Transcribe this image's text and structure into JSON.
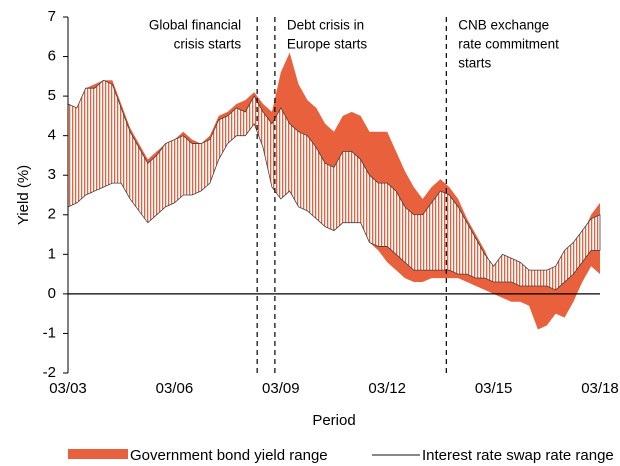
{
  "chart_data": {
    "type": "range_area",
    "y_label": "Yield (%)",
    "x_label": "Period",
    "x": [
      "03/03",
      "06/03",
      "09/03",
      "12/03",
      "03/04",
      "06/04",
      "09/04",
      "12/04",
      "03/05",
      "06/05",
      "09/05",
      "12/05",
      "03/06",
      "06/06",
      "09/06",
      "12/06",
      "03/07",
      "06/07",
      "09/07",
      "12/07",
      "03/08",
      "06/08",
      "09/08",
      "12/08",
      "03/09",
      "06/09",
      "09/09",
      "12/09",
      "03/10",
      "06/10",
      "09/10",
      "12/10",
      "03/11",
      "06/11",
      "09/11",
      "12/11",
      "03/12",
      "06/12",
      "09/12",
      "12/12",
      "03/13",
      "06/13",
      "09/13",
      "12/13",
      "03/14",
      "06/14",
      "09/14",
      "12/14",
      "03/15",
      "06/15",
      "09/15",
      "12/15",
      "03/16",
      "06/16",
      "09/16",
      "12/16",
      "03/17",
      "06/17",
      "09/17",
      "12/17",
      "03/18"
    ],
    "series": [
      {
        "name": "Government bond yield range",
        "color": "#e8603c",
        "high": [
          4.8,
          4.7,
          5.2,
          5.3,
          5.4,
          5.4,
          4.8,
          4.2,
          3.8,
          3.4,
          3.6,
          3.8,
          3.9,
          4.1,
          3.9,
          3.8,
          4.0,
          4.5,
          4.6,
          4.8,
          4.9,
          5.1,
          4.8,
          4.6,
          5.6,
          6.1,
          5.3,
          4.9,
          4.7,
          4.3,
          4.1,
          4.5,
          4.6,
          4.5,
          4.1,
          4.1,
          4.1,
          3.6,
          3.1,
          2.7,
          2.4,
          2.7,
          2.9,
          2.7,
          2.4,
          1.9,
          1.5,
          1.1,
          0.6,
          1.0,
          0.9,
          0.7,
          0.5,
          0.5,
          0.4,
          0.6,
          1.1,
          1.3,
          1.5,
          2.0,
          2.3
        ],
        "low": [
          2.2,
          2.3,
          2.6,
          2.7,
          2.8,
          2.9,
          2.8,
          2.5,
          2.2,
          1.9,
          2.0,
          2.2,
          2.3,
          2.6,
          2.6,
          2.6,
          2.8,
          3.5,
          3.8,
          4.0,
          4.1,
          4.5,
          4.0,
          3.5,
          2.8,
          2.7,
          2.5,
          2.2,
          2.0,
          1.8,
          1.6,
          1.9,
          1.9,
          1.8,
          1.3,
          1.1,
          0.8,
          0.6,
          0.4,
          0.3,
          0.3,
          0.4,
          0.4,
          0.4,
          0.4,
          0.3,
          0.2,
          0.1,
          0.0,
          -0.1,
          -0.2,
          -0.2,
          -0.3,
          -0.9,
          -0.8,
          -0.5,
          -0.6,
          -0.2,
          0.3,
          0.7,
          0.5
        ]
      },
      {
        "name": "Interest rate swap rate range",
        "color": "#404040",
        "high": [
          4.8,
          4.7,
          5.2,
          5.2,
          5.4,
          5.3,
          4.7,
          4.1,
          3.7,
          3.3,
          3.5,
          3.8,
          3.9,
          4.0,
          3.8,
          3.8,
          3.9,
          4.4,
          4.5,
          4.7,
          4.6,
          5.0,
          4.6,
          4.3,
          4.7,
          4.3,
          4.1,
          4.0,
          3.7,
          3.3,
          3.2,
          3.6,
          3.6,
          3.4,
          3.0,
          2.8,
          2.8,
          2.6,
          2.2,
          2.0,
          2.0,
          2.3,
          2.6,
          2.5,
          2.2,
          1.8,
          1.4,
          1.0,
          0.7,
          1.0,
          0.9,
          0.8,
          0.6,
          0.6,
          0.6,
          0.7,
          1.1,
          1.3,
          1.6,
          1.9,
          2.0
        ],
        "low": [
          2.2,
          2.3,
          2.5,
          2.6,
          2.7,
          2.8,
          2.8,
          2.4,
          2.1,
          1.8,
          2.0,
          2.2,
          2.3,
          2.5,
          2.5,
          2.6,
          2.8,
          3.4,
          3.8,
          4.0,
          4.0,
          4.3,
          3.7,
          2.7,
          2.4,
          2.6,
          2.2,
          2.1,
          1.9,
          1.7,
          1.6,
          1.8,
          1.8,
          1.8,
          1.3,
          1.2,
          1.2,
          1.0,
          0.8,
          0.6,
          0.6,
          0.6,
          0.6,
          0.6,
          0.5,
          0.5,
          0.4,
          0.4,
          0.3,
          0.3,
          0.3,
          0.2,
          0.2,
          0.2,
          0.2,
          0.1,
          0.3,
          0.5,
          0.8,
          1.1,
          1.1
        ]
      }
    ],
    "xlim": [
      "03/03",
      "03/18"
    ],
    "xticks": [
      "03/03",
      "03/06",
      "03/09",
      "03/12",
      "03/15",
      "03/18"
    ],
    "ylim": [
      -2,
      7
    ],
    "yticks": [
      -2,
      -1,
      0,
      1,
      2,
      3,
      4,
      5,
      6,
      7
    ],
    "events": [
      {
        "x": "07/08",
        "label": [
          "Global financial",
          "crisis starts"
        ]
      },
      {
        "x": "01/09",
        "label": [
          "Debt crisis in",
          "Europe starts"
        ]
      },
      {
        "x": "11/13",
        "label": [
          "CNB exchange",
          "rate commitment",
          "starts"
        ]
      }
    ]
  }
}
